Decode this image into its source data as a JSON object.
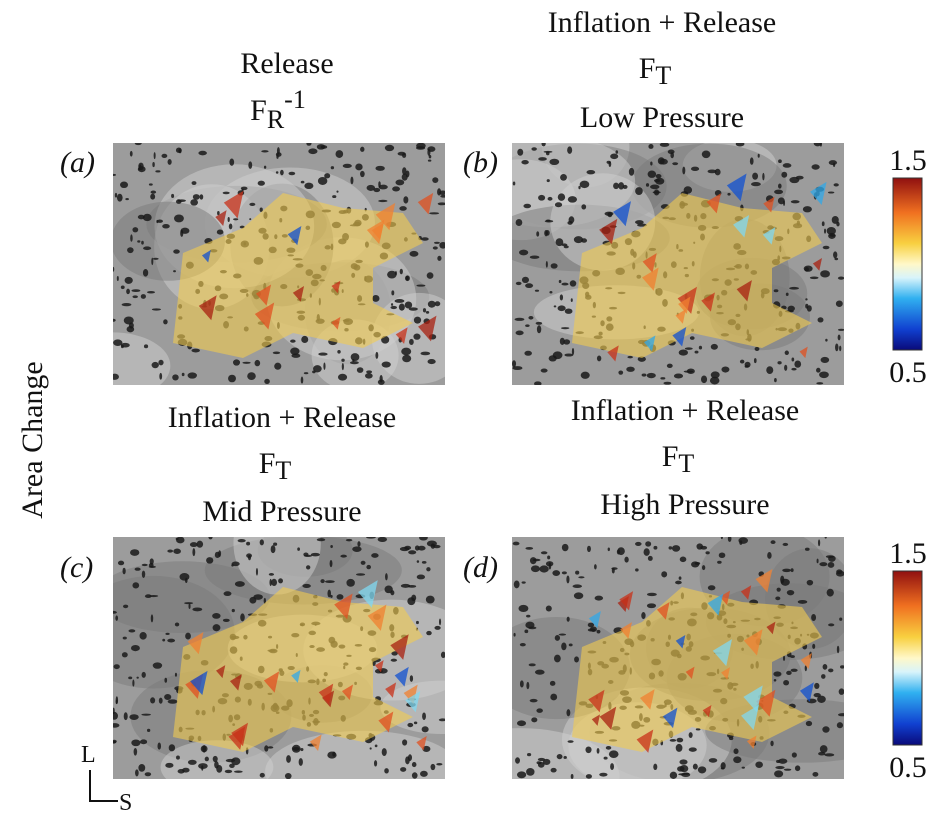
{
  "panels": [
    {
      "label": "(a)",
      "title": "Release",
      "field": {
        "base": "F",
        "sub": "R",
        "sup": "-1"
      }
    },
    {
      "label": "(b)",
      "title": "Inflation + Release",
      "field": {
        "base": "F",
        "sub": "T"
      },
      "condition": "Low Pressure"
    },
    {
      "label": "(c)",
      "title": "Inflation + Release",
      "field": {
        "base": "F",
        "sub": "T"
      },
      "condition": "Mid Pressure"
    },
    {
      "label": "(d)",
      "title": "Inflation + Release",
      "field": {
        "base": "F",
        "sub": "T"
      },
      "condition": "High Pressure"
    }
  ],
  "colorbars": [
    {
      "max": 1.5,
      "min": 0.5
    },
    {
      "max": 1.5,
      "min": 0.5
    }
  ],
  "y_axis_label": "Area Change",
  "orientation": {
    "vertical": "L",
    "horizontal": "S"
  }
}
